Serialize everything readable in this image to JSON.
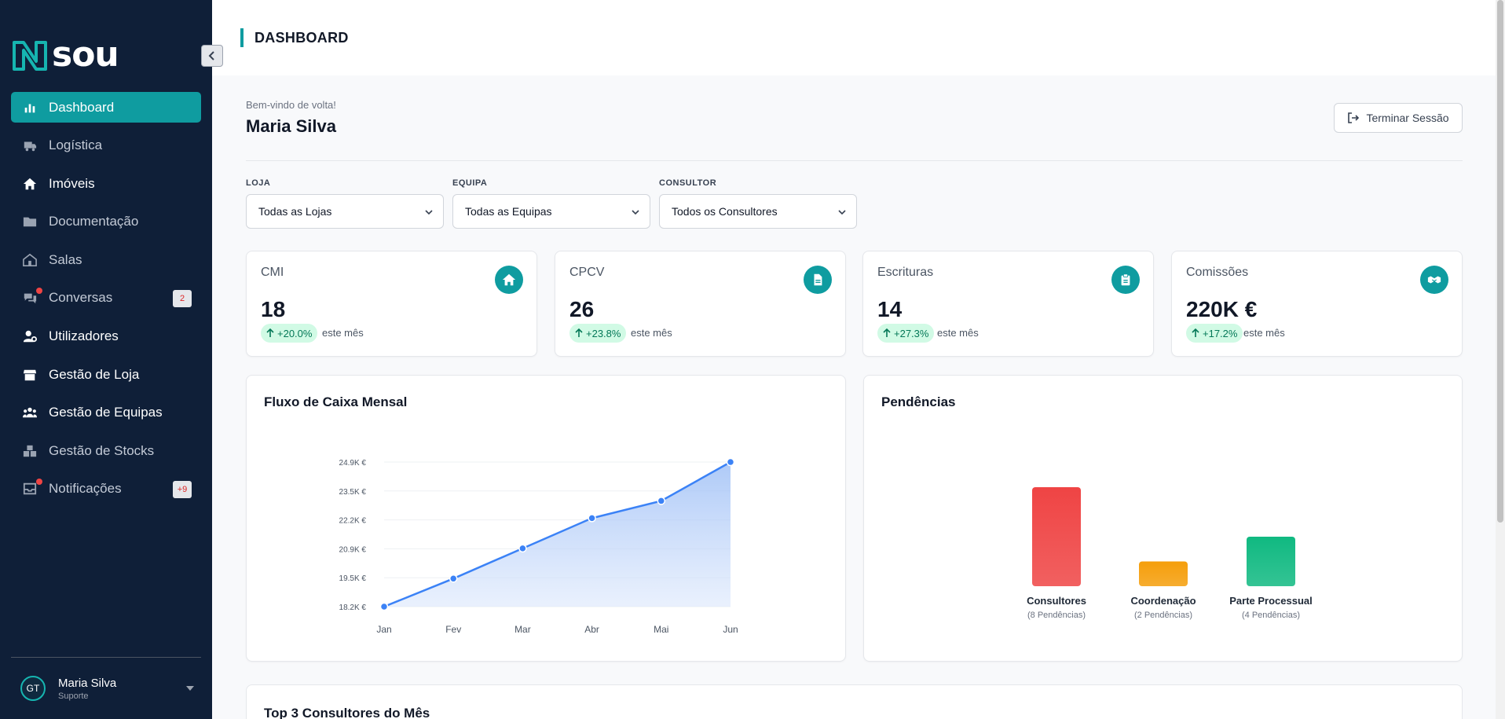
{
  "app": {
    "logo_text": "sou"
  },
  "sidebar": {
    "items": [
      {
        "label": "Dashboard",
        "icon": "bar-chart-icon",
        "active": true
      },
      {
        "label": "Logística",
        "icon": "truck-icon"
      },
      {
        "label": "Imóveis",
        "icon": "home-icon"
      },
      {
        "label": "Documentação",
        "icon": "folder-icon"
      },
      {
        "label": "Salas",
        "icon": "building-icon"
      },
      {
        "label": "Conversas",
        "icon": "chat-icon",
        "badge": "2"
      },
      {
        "label": "Utilizadores",
        "icon": "user-cog-icon"
      },
      {
        "label": "Gestão de Loja",
        "icon": "store-icon"
      },
      {
        "label": "Gestão de Equipas",
        "icon": "team-icon"
      },
      {
        "label": "Gestão de Stocks",
        "icon": "boxes-icon"
      },
      {
        "label": "Notificações",
        "icon": "inbox-icon",
        "badge": "+9"
      }
    ],
    "user": {
      "initials": "GT",
      "name": "Maria Silva",
      "role": "Suporte"
    }
  },
  "header": {
    "title": "DASHBOARD"
  },
  "main": {
    "welcome": "Bem-vindo de volta!",
    "name": "Maria Silva",
    "logout_label": "Terminar Sessão",
    "filters": [
      {
        "label": "LOJA",
        "value": "Todas as Lojas"
      },
      {
        "label": "EQUIPA",
        "value": "Todas as Equipas"
      },
      {
        "label": "CONSULTOR",
        "value": "Todos os Consultores"
      }
    ],
    "stats": [
      {
        "label": "CMI",
        "value": "18",
        "change": "+20.0%",
        "period": "este mês",
        "icon": "home-icon"
      },
      {
        "label": "CPCV",
        "value": "26",
        "change": "+23.8%",
        "period": "este mês",
        "icon": "file-icon"
      },
      {
        "label": "Escrituras",
        "value": "14",
        "change": "+27.3%",
        "period": "este mês",
        "icon": "clipboard-icon"
      },
      {
        "label": "Comissões",
        "value": "220K €",
        "change": "+17.2%",
        "period": "este mês",
        "icon": "handshake-icon"
      }
    ],
    "cashflow_title": "Fluxo de Caixa Mensal",
    "pending_title": "Pendências",
    "top_consultants_title": "Top 3 Consultores do Mês"
  },
  "colors": {
    "accent": "#0f9ca0",
    "sidebar_bg": "#0f1f38",
    "line": "#3b82f6",
    "bar_red": "#ef4444",
    "bar_orange": "#f59e0b",
    "bar_green": "#10b981"
  },
  "chart_data": [
    {
      "type": "area",
      "title": "Fluxo de Caixa Mensal",
      "categories": [
        "Jan",
        "Fev",
        "Mar",
        "Abr",
        "Mai",
        "Jun"
      ],
      "values": [
        18.2,
        19.5,
        20.9,
        22.3,
        23.1,
        24.9
      ],
      "y_ticks": [
        "18.2K €",
        "19.5K €",
        "20.9K €",
        "22.2K €",
        "23.5K €",
        "24.9K €"
      ],
      "ylim": [
        18.2,
        24.9
      ],
      "grid": true
    },
    {
      "type": "bar",
      "title": "Pendências",
      "categories": [
        "Consultores",
        "Coordenação",
        "Parte Processual"
      ],
      "values": [
        8,
        2,
        4
      ],
      "sublabels": [
        "(8 Pendências)",
        "(2 Pendências)",
        "(4 Pendências)"
      ],
      "colors": [
        "#ef4444",
        "#f59e0b",
        "#10b981"
      ]
    }
  ]
}
